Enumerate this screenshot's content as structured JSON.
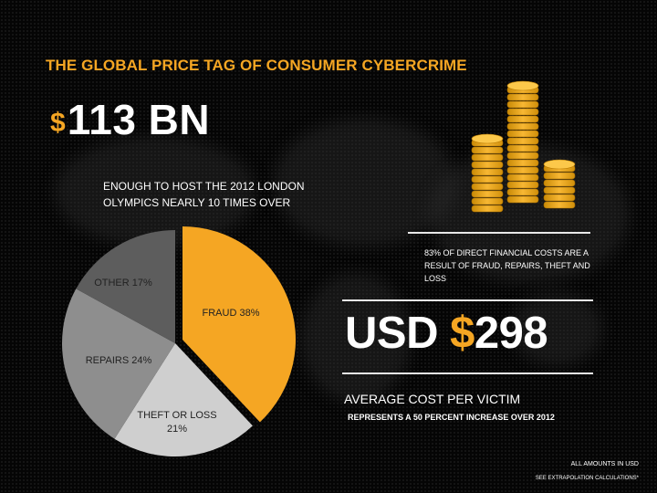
{
  "headline": "THE GLOBAL PRICE TAG OF CONSUMER CYBERCRIME",
  "total_cost": {
    "currency_symbol": "$",
    "value_text": "113 BN"
  },
  "comparison_text": "ENOUGH TO HOST THE 2012 LONDON OLYMPICS NEARLY 10 TIMES OVER",
  "financial_costs_note": "83% OF DIRECT FINANCIAL COSTS ARE A RESULT OF FRAUD, REPAIRS, THEFT AND LOSS",
  "average_cost": {
    "prefix": "USD ",
    "currency_symbol": "$",
    "value_text": "298"
  },
  "average_cost_title": "AVERAGE COST PER VICTIM",
  "average_cost_subtitle": "REPRESENTS A 50 PERCENT INCREASE OVER 2012",
  "footer": {
    "amounts_note": "ALL AMOUNTS IN USD",
    "extrapolation_note": "SEE EXTRAPOLATION CALCULATIONS*"
  },
  "icons": {
    "coins": "coin-stacks-icon"
  },
  "colors": {
    "accent": "#f5a623",
    "background": "#050505"
  },
  "chart_data": {
    "type": "pie",
    "title": "",
    "start_angle_deg": 0,
    "direction": "clockwise",
    "slices": [
      {
        "label": "FRAUD 38%",
        "value": 38,
        "color": "#f5a623",
        "text_color": "#222222"
      },
      {
        "label": "THEFT OR LOSS 21%",
        "value": 21,
        "color": "#cfcfcf",
        "text_color": "#222222"
      },
      {
        "label": "REPAIRS 24%",
        "value": 24,
        "color": "#8e8e8e",
        "text_color": "#222222"
      },
      {
        "label": "OTHER 17%",
        "value": 17,
        "color": "#5d5d5d",
        "text_color": "#222222"
      }
    ]
  }
}
